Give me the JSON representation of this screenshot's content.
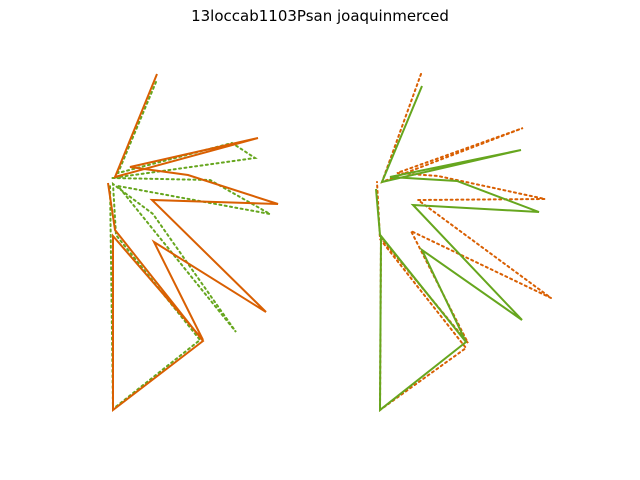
{
  "figure": {
    "title": "13loccab1103Psan joaquinmerced"
  },
  "colors": {
    "orange": "#d95f02",
    "green": "#66a61e"
  },
  "panels": [
    {
      "name": "left-panel",
      "strokes": [
        {
          "name": "left-green-dotted-outline",
          "color": "#66a61e",
          "style": "dotted",
          "points": [
            [
              156,
              82
            ],
            [
              118,
              173
            ],
            [
              232,
              143
            ],
            [
              255,
              158
            ],
            [
              112,
              178
            ],
            [
              210,
              180
            ],
            [
              270,
              214
            ],
            [
              118,
              186
            ],
            [
              236,
              332
            ],
            [
              153,
              214
            ],
            [
              113,
              184
            ],
            [
              116,
              235
            ],
            [
              200,
              340
            ],
            [
              113,
              409
            ],
            [
              110,
              183
            ]
          ]
        },
        {
          "name": "left-orange-solid-outline",
          "color": "#d95f02",
          "style": "solid",
          "points": [
            [
              157,
              74
            ],
            [
              115,
              177
            ],
            [
              258,
              138
            ],
            [
              130,
              167
            ],
            [
              188,
              175
            ],
            [
              278,
              204
            ],
            [
              152,
              200
            ],
            [
              266,
              312
            ],
            [
              154,
              242
            ],
            [
              203,
              340
            ],
            [
              113,
              236
            ],
            [
              113,
              410
            ],
            [
              203,
              341
            ],
            [
              115,
              230
            ],
            [
              108,
              183
            ]
          ]
        }
      ]
    },
    {
      "name": "right-panel",
      "strokes": [
        {
          "name": "right-orange-dotted-outline",
          "color": "#d95f02",
          "style": "dotted",
          "points": [
            [
              421,
              74
            ],
            [
              382,
              182
            ],
            [
              523,
              128
            ],
            [
              397,
              173
            ],
            [
              438,
              176
            ],
            [
              545,
              199
            ],
            [
              418,
              200
            ],
            [
              551,
              298
            ],
            [
              411,
              231
            ],
            [
              468,
              343
            ],
            [
              381,
              238
            ],
            [
              380,
              410
            ],
            [
              466,
              348
            ],
            [
              380,
              239
            ],
            [
              377,
              182
            ]
          ]
        },
        {
          "name": "right-green-solid-outline",
          "color": "#66a61e",
          "style": "solid",
          "points": [
            [
              422,
              86
            ],
            [
              382,
              182
            ],
            [
              521,
              150
            ],
            [
              390,
              177
            ],
            [
              457,
              181
            ],
            [
              539,
              212
            ],
            [
              413,
              205
            ],
            [
              522,
              320
            ],
            [
              422,
              250
            ],
            [
              466,
              342
            ],
            [
              381,
              236
            ],
            [
              380,
              410
            ],
            [
              466,
              342
            ],
            [
              380,
              235
            ],
            [
              376,
              189
            ]
          ]
        }
      ]
    }
  ]
}
